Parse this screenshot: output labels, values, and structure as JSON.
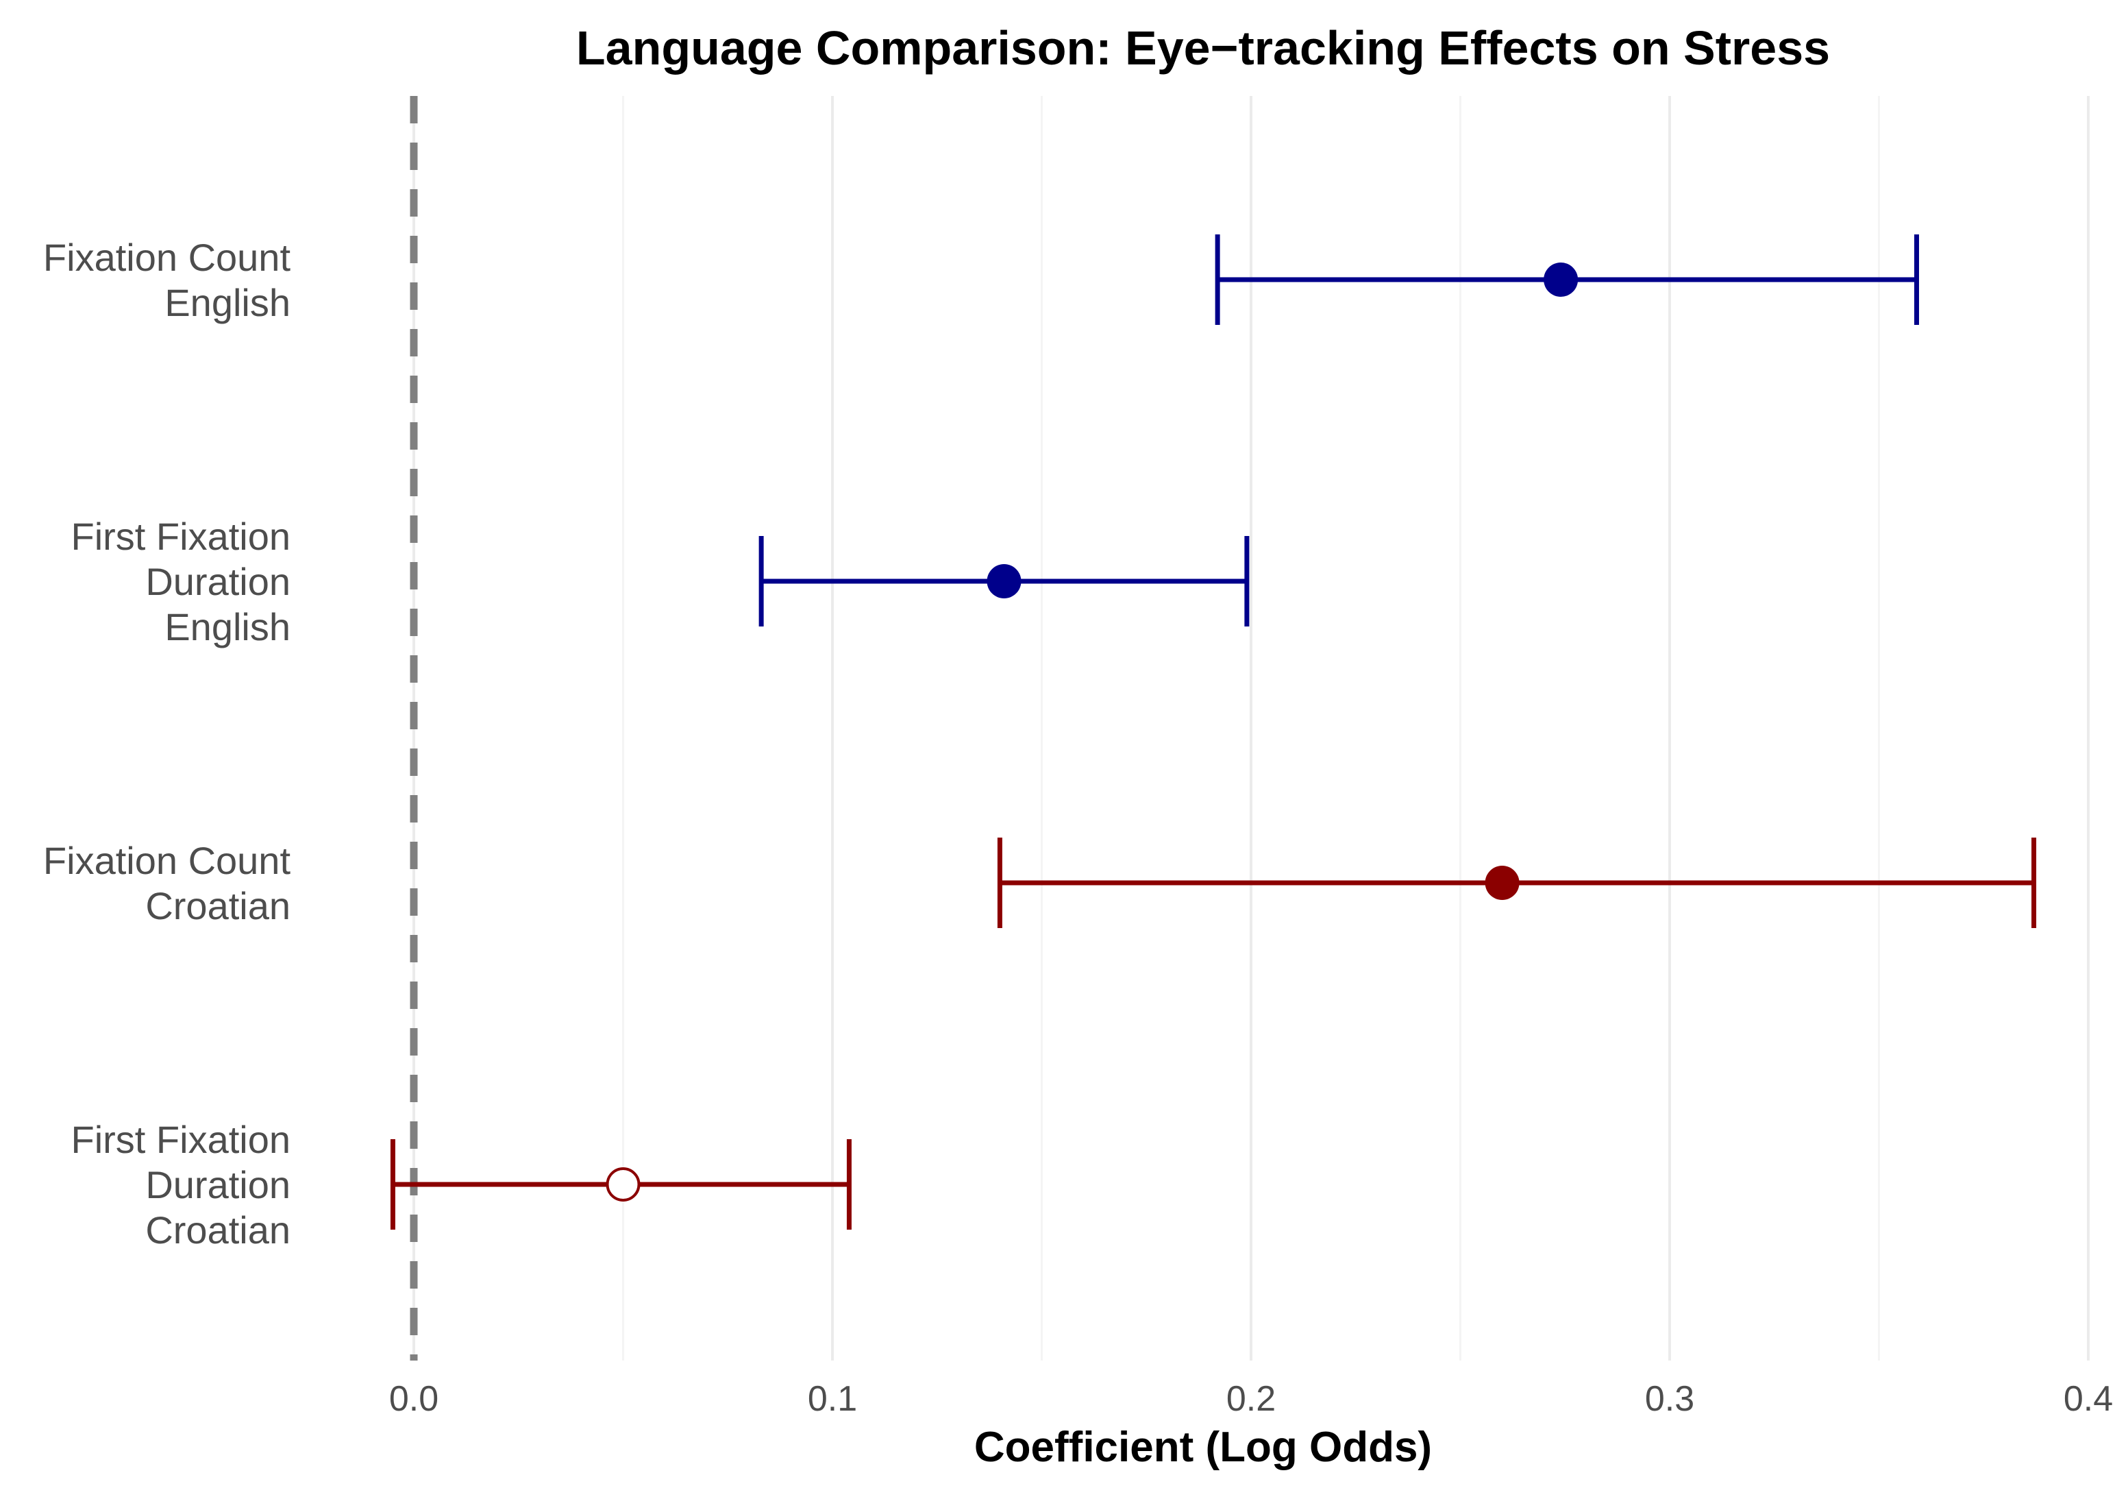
{
  "chart_data": {
    "type": "scatter",
    "subtype": "coefficient-plot-with-error-bars",
    "title": "Language Comparison: Eye−tracking Effects on Stress",
    "xlabel": "Coefficient (Log Odds)",
    "ylabel": "",
    "xlim": [
      -0.005,
      0.4
    ],
    "xticks": [
      "0.0",
      "0.1",
      "0.2",
      "0.3",
      "0.4"
    ],
    "xtick_values": [
      0.0,
      0.1,
      0.2,
      0.3,
      0.4
    ],
    "reference_line": {
      "x": 0.0,
      "style": "dashed",
      "color": "#808080"
    },
    "grid": true,
    "series": [
      {
        "label_lines": [
          "Fixation Count",
          "English"
        ],
        "language": "English",
        "estimate": 0.274,
        "ci_low": 0.192,
        "ci_high": 0.359,
        "significant": true,
        "color": "#00008b"
      },
      {
        "label_lines": [
          "First Fixation",
          "Duration",
          "English"
        ],
        "language": "English",
        "estimate": 0.141,
        "ci_low": 0.083,
        "ci_high": 0.199,
        "significant": true,
        "color": "#00008b"
      },
      {
        "label_lines": [
          "Fixation Count",
          "Croatian"
        ],
        "language": "Croatian",
        "estimate": 0.26,
        "ci_low": 0.14,
        "ci_high": 0.387,
        "significant": true,
        "color": "#8b0000"
      },
      {
        "label_lines": [
          "First Fixation",
          "Duration",
          "Croatian"
        ],
        "language": "Croatian",
        "estimate": 0.05,
        "ci_low": -0.005,
        "ci_high": 0.104,
        "significant": false,
        "color": "#8b0000"
      }
    ]
  }
}
